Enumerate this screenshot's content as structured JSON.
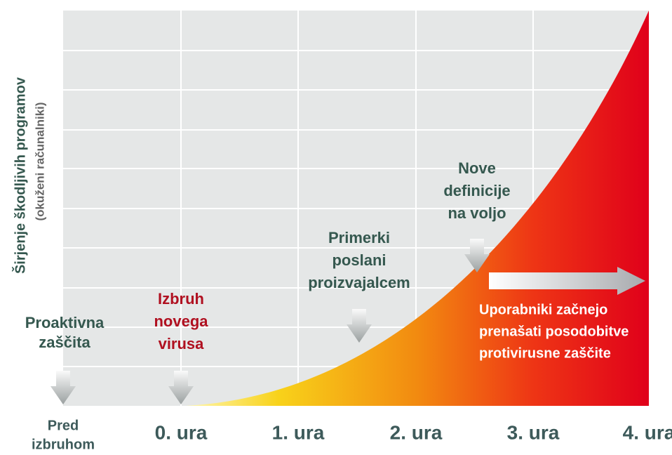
{
  "y_axis": {
    "title": "Širjenje škodljivih programov",
    "subtitle": "(okuženi računalniki)"
  },
  "x_labels": [
    [
      "Pred",
      "izbruhom"
    ],
    [
      "0. ura"
    ],
    [
      "1. ura"
    ],
    [
      "2. ura"
    ],
    [
      "3. ura"
    ],
    [
      "4. ura"
    ]
  ],
  "annotations": [
    {
      "lines": [
        "Proaktivna",
        "zaščita"
      ]
    },
    {
      "lines": [
        "Izbruh",
        "novega",
        "virusa"
      ]
    },
    {
      "lines": [
        "Primerki",
        "poslani",
        "proizvajalcem"
      ]
    },
    {
      "lines": [
        "Nove",
        "definicije",
        "na voljo"
      ]
    },
    {
      "lines": [
        "Uporabniki začnejo",
        "prenašati posodobitve",
        "protivirusne zaščite"
      ]
    }
  ]
}
